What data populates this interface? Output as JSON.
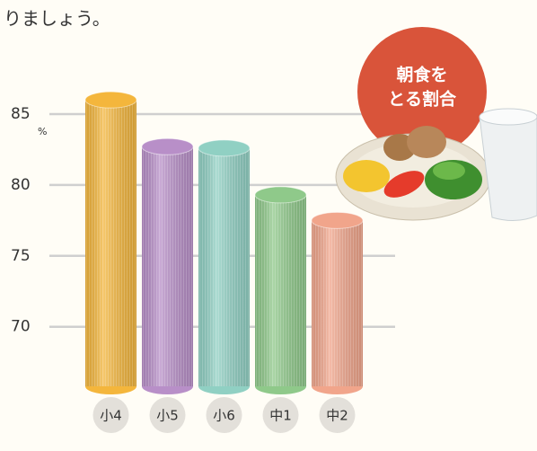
{
  "chart_data": {
    "type": "bar",
    "title": "りましょう。",
    "annotations": [
      "朝食を",
      "とる割合"
    ],
    "unit": "%",
    "categories": [
      "小4",
      "小5",
      "小6",
      "中1",
      "中2"
    ],
    "values": [
      86.0,
      82.7,
      82.6,
      79.3,
      77.5
    ],
    "colors": [
      "#f4b63c",
      "#b88fc8",
      "#90d0c3",
      "#8fc98a",
      "#f1a58b"
    ],
    "ylim": [
      65.8,
      87
    ],
    "yticks": [
      70,
      75,
      80,
      85
    ],
    "grid": true
  }
}
